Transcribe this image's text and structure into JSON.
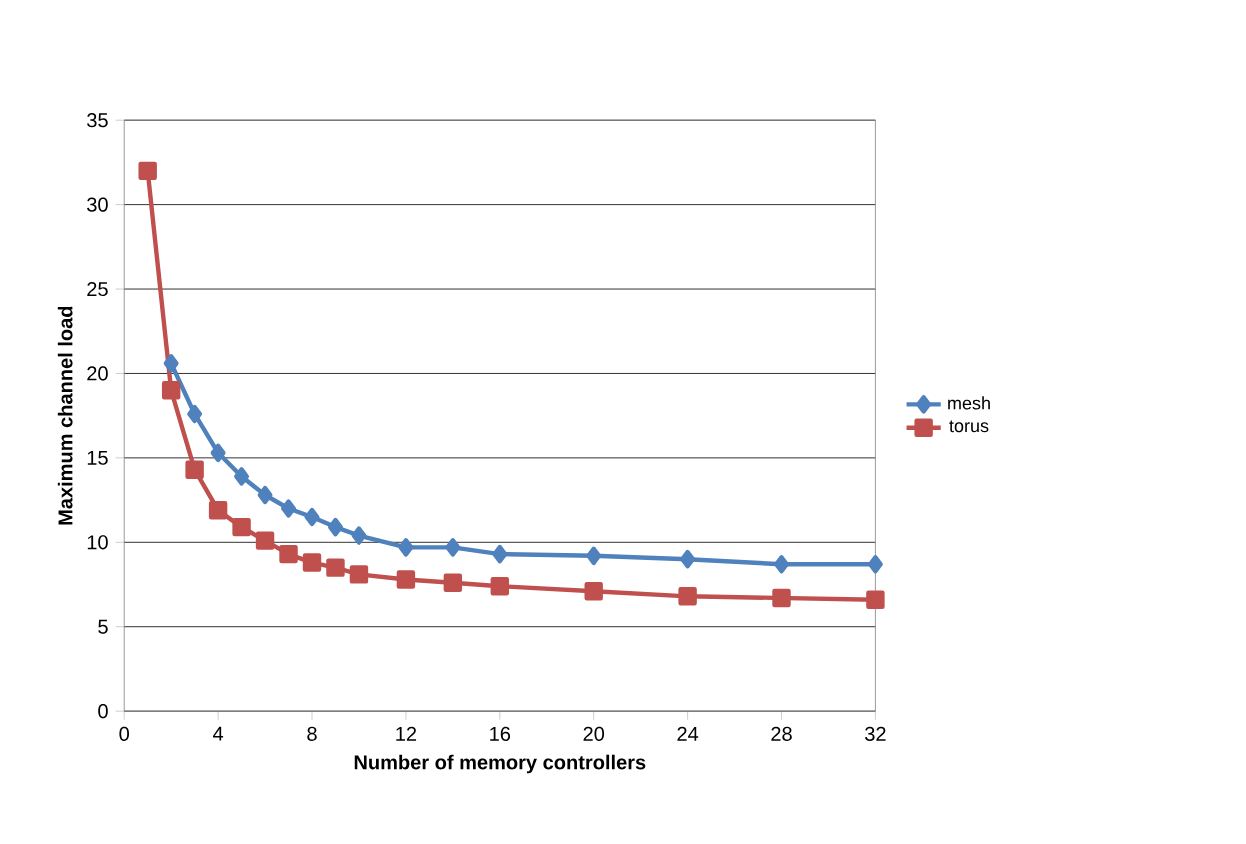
{
  "chart_data": {
    "type": "line",
    "xlabel": "Number of memory controllers",
    "ylabel": "Maximum channel load",
    "xlim": [
      0,
      32
    ],
    "xticks": [
      0,
      4,
      8,
      12,
      16,
      20,
      24,
      28,
      32
    ],
    "ylim": [
      0,
      35
    ],
    "yticks": [
      0,
      5,
      10,
      15,
      20,
      25,
      30,
      35
    ],
    "grid": "y",
    "legend": "right",
    "series": [
      {
        "name": "mesh",
        "color": "#4f81bd",
        "marker": "diamond",
        "x": [
          2,
          3,
          4,
          5,
          6,
          7,
          8,
          9,
          10,
          12,
          14,
          16,
          20,
          24,
          28,
          32
        ],
        "values": [
          20.6,
          17.6,
          15.3,
          13.9,
          12.8,
          12.0,
          11.5,
          10.9,
          10.4,
          9.7,
          9.7,
          9.3,
          9.2,
          9.0,
          8.7,
          8.7
        ]
      },
      {
        "name": "torus",
        "color": "#c0504d",
        "marker": "square",
        "x": [
          1,
          2,
          3,
          4,
          5,
          6,
          7,
          8,
          9,
          10,
          12,
          14,
          16,
          20,
          24,
          28,
          32
        ],
        "values": [
          32,
          19.0,
          14.3,
          11.9,
          10.9,
          10.1,
          9.3,
          8.8,
          8.5,
          8.1,
          7.8,
          7.6,
          7.4,
          7.1,
          6.8,
          6.7,
          6.6
        ]
      }
    ]
  }
}
